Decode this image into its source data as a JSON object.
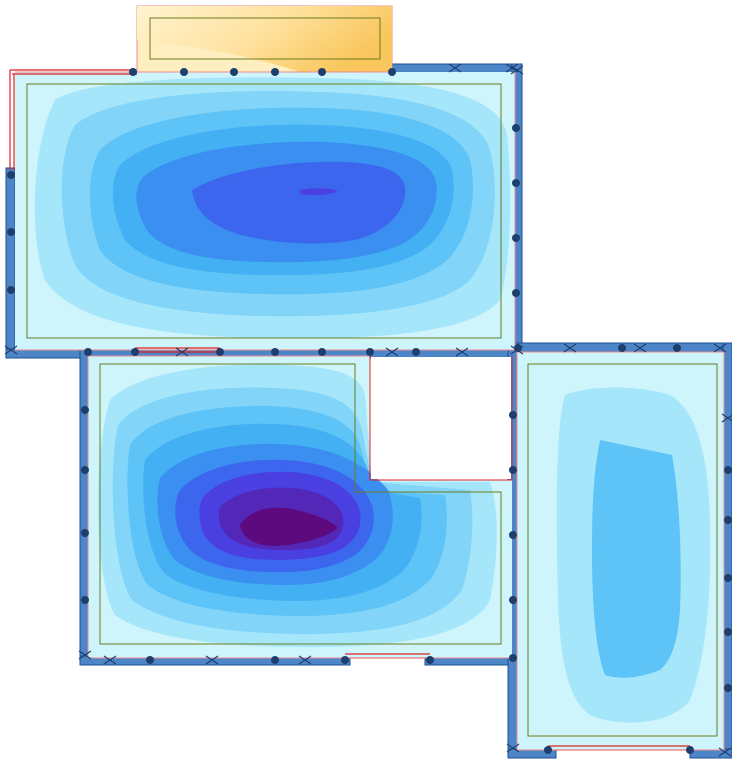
{
  "diagram": {
    "type": "slab-deflection-contour-plan",
    "colors": {
      "background": "#ffffff",
      "wall_fill": "#4d86c8",
      "wall_stroke": "#1f4f8f",
      "slab_base": "#cef4fc",
      "inner_outline": "#6a7d1e",
      "edge_line_red": "#e02020",
      "edge_line_pink": "#f08a8a",
      "support_marker": "#1d3f6e",
      "balcony_outer": "#ffe9b8",
      "balcony_mid": "#ffd98a",
      "balcony_inner": "#f7c45a",
      "contour_scale": [
        "#cef4fc",
        "#a6e6fa",
        "#82d4f8",
        "#5ec3f6",
        "#43b0f3",
        "#3a8ff1",
        "#3d66ee",
        "#4a3fe0",
        "#5327b8",
        "#5c0a7e"
      ]
    },
    "panels": [
      {
        "id": "top-slab",
        "icon": "slab-panel-icon"
      },
      {
        "id": "bottom-left-slab",
        "icon": "slab-panel-icon"
      },
      {
        "id": "right-slab",
        "icon": "slab-panel-icon"
      },
      {
        "id": "balcony",
        "icon": "cantilever-panel-icon"
      }
    ]
  }
}
